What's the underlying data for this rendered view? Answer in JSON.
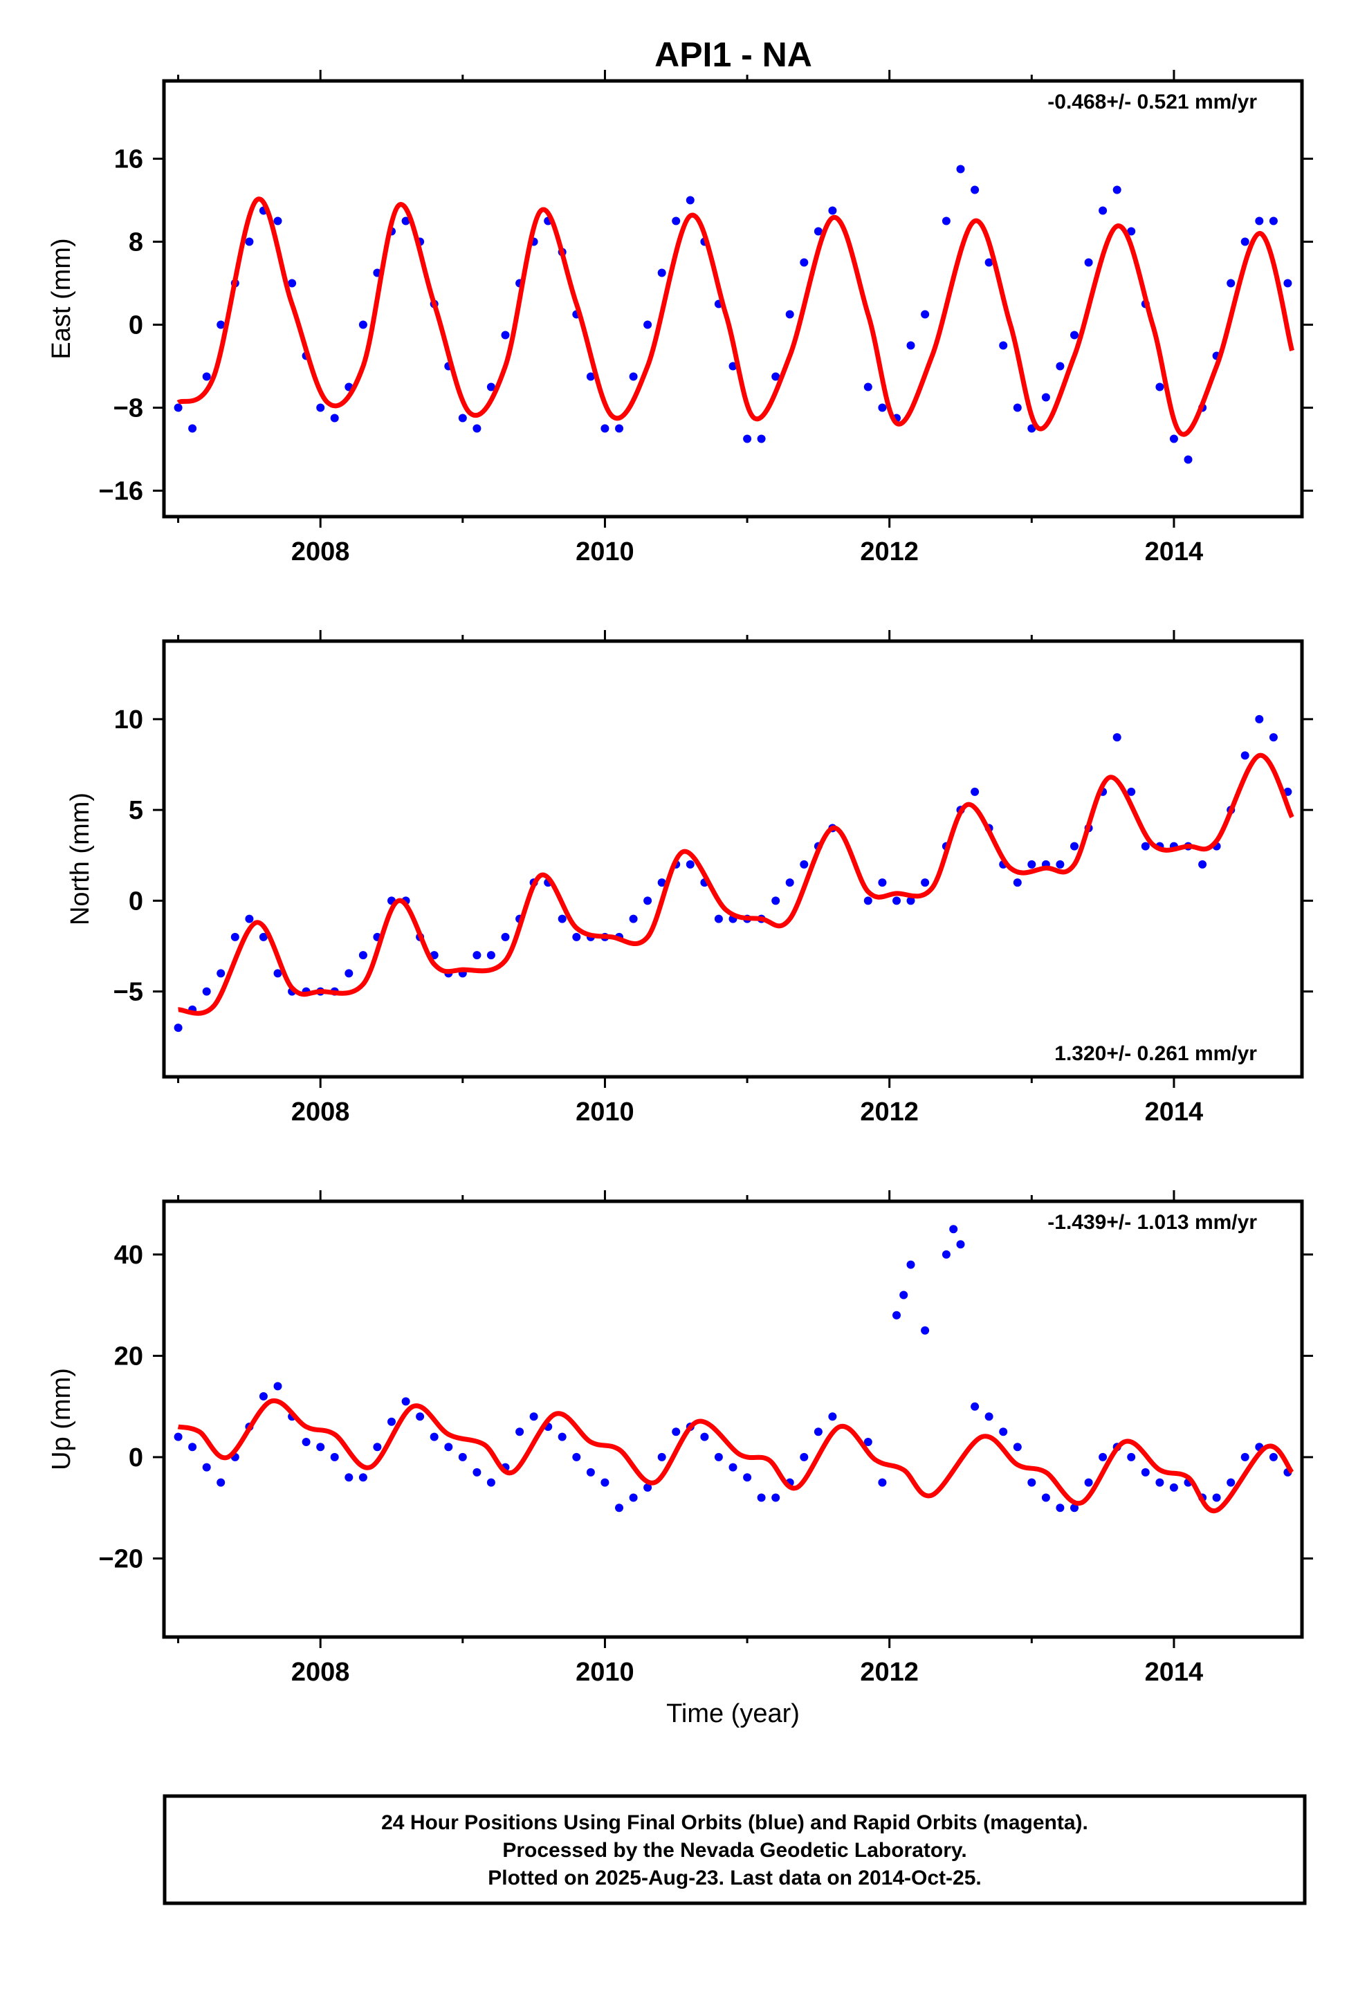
{
  "title": "API1 - NA",
  "footer": {
    "line1": "24 Hour Positions Using Final Orbits (blue) and Rapid Orbits (magenta).",
    "line2": "Processed by the Nevada Geodetic Laboratory.",
    "line3": "Plotted on 2025-Aug-23. Last data on 2014-Oct-25."
  },
  "colors": {
    "data_points": "#0000ff",
    "model_fit": "#ff0000",
    "frame": "#000000"
  },
  "chart_data": [
    {
      "type": "scatter",
      "ylabel": "East (mm)",
      "xlim": [
        2006.9,
        2014.9
      ],
      "ylim": [
        -18.5,
        23.5
      ],
      "xticks": [
        2008,
        2010,
        2012,
        2014
      ],
      "yticks": [
        -16,
        -8,
        0,
        8,
        16
      ],
      "yticklabels": [
        "−16",
        "−8",
        "0",
        "8",
        "16"
      ],
      "rate_label": "-0.468+/- 0.521 mm/yr",
      "rate_position": "top-right",
      "series": [
        {
          "kind": "points",
          "x": [
            2007.0,
            2007.1,
            2007.2,
            2007.3,
            2007.4,
            2007.5,
            2007.6,
            2007.7,
            2007.8,
            2007.9,
            2008.0,
            2008.1,
            2008.2,
            2008.3,
            2008.4,
            2008.5,
            2008.6,
            2008.7,
            2008.8,
            2008.9,
            2009.0,
            2009.1,
            2009.2,
            2009.3,
            2009.4,
            2009.5,
            2009.6,
            2009.7,
            2009.8,
            2009.9,
            2010.0,
            2010.1,
            2010.2,
            2010.3,
            2010.4,
            2010.5,
            2010.6,
            2010.7,
            2010.8,
            2010.9,
            2011.0,
            2011.1,
            2011.2,
            2011.3,
            2011.4,
            2011.5,
            2011.6,
            2011.85,
            2011.95,
            2012.05,
            2012.15,
            2012.25,
            2012.4,
            2012.5,
            2012.6,
            2012.7,
            2012.8,
            2012.9,
            2013.0,
            2013.1,
            2013.2,
            2013.3,
            2013.4,
            2013.5,
            2013.6,
            2013.7,
            2013.8,
            2013.9,
            2014.0,
            2014.1,
            2014.2,
            2014.3,
            2014.4,
            2014.5,
            2014.6,
            2014.7,
            2014.8
          ],
          "y": [
            -8,
            -10,
            -5,
            0,
            4,
            8,
            11,
            10,
            4,
            -3,
            -8,
            -9,
            -6,
            0,
            5,
            9,
            10,
            8,
            2,
            -4,
            -9,
            -10,
            -6,
            -1,
            4,
            8,
            10,
            7,
            1,
            -5,
            -10,
            -10,
            -5,
            0,
            5,
            10,
            12,
            8,
            2,
            -4,
            -11,
            -11,
            -5,
            1,
            6,
            9,
            11,
            -6,
            -8,
            -9,
            -2,
            1,
            10,
            15,
            13,
            6,
            -2,
            -8,
            -10,
            -7,
            -4,
            -1,
            6,
            11,
            13,
            9,
            2,
            -6,
            -11,
            -13,
            -8,
            -3,
            4,
            8,
            10,
            10,
            4
          ]
        },
        {
          "kind": "model",
          "x": [
            2007.0,
            2007.25,
            2007.55,
            2007.8,
            2008.05,
            2008.3,
            2008.55,
            2008.8,
            2009.05,
            2009.3,
            2009.55,
            2009.8,
            2010.05,
            2010.3,
            2010.6,
            2010.85,
            2011.05,
            2011.3,
            2011.6,
            2011.85,
            2012.05,
            2012.3,
            2012.6,
            2012.85,
            2013.05,
            2013.3,
            2013.6,
            2013.85,
            2014.05,
            2014.3,
            2014.6,
            2014.83
          ],
          "y": [
            -7.5,
            -5,
            12,
            2,
            -7.5,
            -4,
            11.5,
            2,
            -8.5,
            -4,
            11,
            2,
            -8.8,
            -4,
            10.5,
            1,
            -9,
            -3,
            10.3,
            1,
            -9.5,
            -3,
            10,
            0,
            -10,
            -3,
            9.5,
            0,
            -10.5,
            -4,
            8.8,
            -2.5
          ]
        }
      ]
    },
    {
      "type": "scatter",
      "ylabel": "North (mm)",
      "xlim": [
        2006.9,
        2014.9
      ],
      "ylim": [
        -9.7,
        14.3
      ],
      "xticks": [
        2008,
        2010,
        2012,
        2014
      ],
      "yticks": [
        -5,
        0,
        5,
        10
      ],
      "yticklabels": [
        "−5",
        "0",
        "5",
        "10"
      ],
      "rate_label": "1.320+/- 0.261 mm/yr",
      "rate_position": "bottom-right",
      "series": [
        {
          "kind": "points",
          "x": [
            2007.0,
            2007.1,
            2007.2,
            2007.3,
            2007.4,
            2007.5,
            2007.6,
            2007.7,
            2007.8,
            2007.9,
            2008.0,
            2008.1,
            2008.2,
            2008.3,
            2008.4,
            2008.5,
            2008.6,
            2008.7,
            2008.8,
            2008.9,
            2009.0,
            2009.1,
            2009.2,
            2009.3,
            2009.4,
            2009.5,
            2009.6,
            2009.7,
            2009.8,
            2009.9,
            2010.0,
            2010.1,
            2010.2,
            2010.3,
            2010.4,
            2010.5,
            2010.6,
            2010.7,
            2010.8,
            2010.9,
            2011.0,
            2011.1,
            2011.2,
            2011.3,
            2011.4,
            2011.5,
            2011.6,
            2011.85,
            2011.95,
            2012.05,
            2012.15,
            2012.25,
            2012.4,
            2012.5,
            2012.6,
            2012.7,
            2012.8,
            2012.9,
            2013.0,
            2013.1,
            2013.2,
            2013.3,
            2013.4,
            2013.5,
            2013.6,
            2013.7,
            2013.8,
            2013.9,
            2014.0,
            2014.1,
            2014.2,
            2014.3,
            2014.4,
            2014.5,
            2014.6,
            2014.7,
            2014.8
          ],
          "y": [
            -7,
            -6,
            -5,
            -4,
            -2,
            -1,
            -2,
            -4,
            -5,
            -5,
            -5,
            -5,
            -4,
            -3,
            -2,
            0,
            0,
            -2,
            -3,
            -4,
            -4,
            -3,
            -3,
            -2,
            -1,
            1,
            1,
            -1,
            -2,
            -2,
            -2,
            -2,
            -1,
            0,
            1,
            2,
            2,
            1,
            -1,
            -1,
            -1,
            -1,
            0,
            1,
            2,
            3,
            4,
            0,
            1,
            0,
            0,
            1,
            3,
            5,
            6,
            4,
            2,
            1,
            2,
            2,
            2,
            3,
            4,
            6,
            9,
            6,
            3,
            3,
            3,
            3,
            2,
            3,
            5,
            8,
            10,
            9,
            6
          ]
        },
        {
          "kind": "model",
          "x": [
            2007.0,
            2007.25,
            2007.55,
            2007.8,
            2008.0,
            2008.3,
            2008.55,
            2008.8,
            2009.0,
            2009.3,
            2009.55,
            2009.8,
            2010.05,
            2010.3,
            2010.55,
            2010.85,
            2011.1,
            2011.3,
            2011.6,
            2011.85,
            2012.05,
            2012.3,
            2012.55,
            2012.85,
            2013.1,
            2013.3,
            2013.55,
            2013.85,
            2014.1,
            2014.3,
            2014.6,
            2014.83
          ],
          "y": [
            -6,
            -5.8,
            -1.2,
            -4.8,
            -5,
            -4.6,
            0,
            -3.5,
            -3.8,
            -3.3,
            1.4,
            -1.5,
            -2,
            -2,
            2.7,
            -0.5,
            -1,
            -1,
            4,
            0.5,
            0.4,
            0.7,
            5.3,
            1.8,
            1.8,
            2,
            6.8,
            3.1,
            3,
            3.3,
            8,
            4.6
          ]
        }
      ]
    },
    {
      "type": "scatter",
      "ylabel": "Up (mm)",
      "xlim": [
        2006.9,
        2014.9
      ],
      "ylim": [
        -35.5,
        50.5
      ],
      "xticks": [
        2008,
        2010,
        2012,
        2014
      ],
      "xlabel": "Time (year)",
      "yticks": [
        -20,
        0,
        20,
        40
      ],
      "yticklabels": [
        "−20",
        "0",
        "20",
        "40"
      ],
      "rate_label": "-1.439+/- 1.013 mm/yr",
      "rate_position": "top-right",
      "series": [
        {
          "kind": "points",
          "x": [
            2007.0,
            2007.1,
            2007.2,
            2007.3,
            2007.4,
            2007.5,
            2007.6,
            2007.7,
            2007.8,
            2007.9,
            2008.0,
            2008.1,
            2008.2,
            2008.3,
            2008.4,
            2008.5,
            2008.6,
            2008.7,
            2008.8,
            2008.9,
            2009.0,
            2009.1,
            2009.2,
            2009.3,
            2009.4,
            2009.5,
            2009.6,
            2009.7,
            2009.8,
            2009.9,
            2010.0,
            2010.1,
            2010.2,
            2010.3,
            2010.4,
            2010.5,
            2010.6,
            2010.7,
            2010.8,
            2010.9,
            2011.0,
            2011.1,
            2011.2,
            2011.3,
            2011.4,
            2011.5,
            2011.6,
            2011.85,
            2011.95,
            2012.05,
            2012.1,
            2012.15,
            2012.25,
            2012.4,
            2012.45,
            2012.5,
            2012.6,
            2012.7,
            2012.8,
            2012.9,
            2013.0,
            2013.1,
            2013.2,
            2013.3,
            2013.4,
            2013.5,
            2013.6,
            2013.7,
            2013.8,
            2013.9,
            2014.0,
            2014.1,
            2014.2,
            2014.3,
            2014.4,
            2014.5,
            2014.6,
            2014.7,
            2014.8
          ],
          "y": [
            4,
            2,
            -2,
            -5,
            0,
            6,
            12,
            14,
            8,
            3,
            2,
            0,
            -4,
            -4,
            2,
            7,
            11,
            8,
            4,
            2,
            0,
            -3,
            -5,
            -2,
            5,
            8,
            6,
            4,
            0,
            -3,
            -5,
            -10,
            -8,
            -6,
            0,
            5,
            6,
            4,
            0,
            -2,
            -4,
            -8,
            -8,
            -5,
            0,
            5,
            8,
            3,
            -5,
            28,
            32,
            38,
            25,
            40,
            45,
            42,
            10,
            8,
            5,
            2,
            -5,
            -8,
            -10,
            -10,
            -5,
            0,
            2,
            0,
            -3,
            -5,
            -6,
            -5,
            -8,
            -8,
            -5,
            0,
            2,
            0,
            -3
          ]
        },
        {
          "kind": "model",
          "x": [
            2007.0,
            2007.15,
            2007.35,
            2007.65,
            2007.9,
            2008.1,
            2008.35,
            2008.65,
            2008.9,
            2009.15,
            2009.35,
            2009.65,
            2009.9,
            2010.1,
            2010.35,
            2010.65,
            2010.95,
            2011.15,
            2011.35,
            2011.65,
            2011.9,
            2012.1,
            2012.3,
            2012.65,
            2012.9,
            2013.1,
            2013.35,
            2013.65,
            2013.9,
            2014.1,
            2014.3,
            2014.65,
            2014.83
          ],
          "y": [
            6,
            5,
            0,
            11,
            6,
            4.5,
            -2,
            10,
            4.5,
            2.5,
            -3,
            8.5,
            3,
            1.5,
            -5,
            7,
            0.5,
            -0.5,
            -6,
            6,
            -0.5,
            -2.5,
            -7.5,
            4,
            -1.5,
            -3,
            -9,
            3,
            -2.5,
            -4,
            -10.5,
            2,
            -3
          ]
        }
      ]
    }
  ]
}
